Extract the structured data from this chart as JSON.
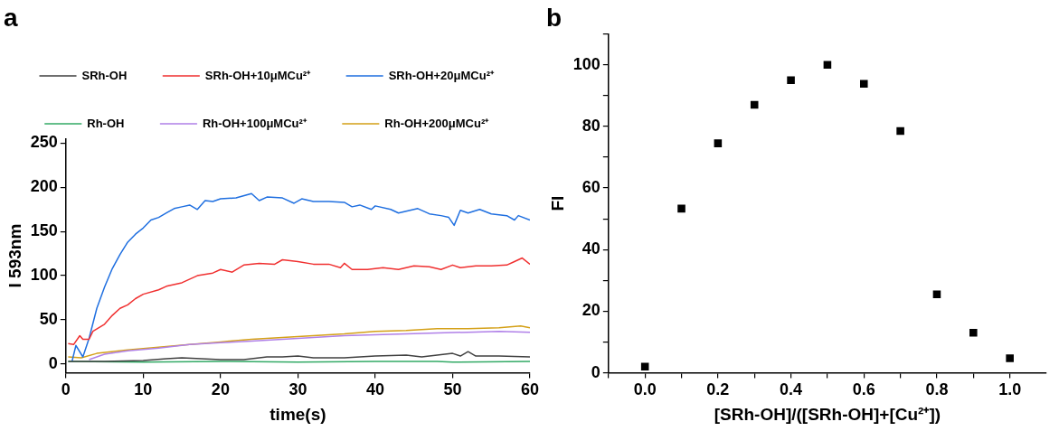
{
  "chart_data": [
    {
      "type": "line",
      "title": "a",
      "xlabel": "time(s)",
      "ylabel": "I 593nm",
      "xlim": [
        0,
        60
      ],
      "xticks": [
        0,
        10,
        20,
        30,
        40,
        50,
        60
      ],
      "ylim": [
        -10,
        255
      ],
      "yticks": [
        0,
        50,
        100,
        150,
        200,
        250
      ],
      "grid": false,
      "legend": "top",
      "marker": "none",
      "line_style": "solid",
      "series": [
        {
          "name": "SRh-OH",
          "color": "#404040",
          "x": [
            0.3,
            5,
            10,
            13,
            15,
            20,
            23,
            26,
            28,
            30,
            32,
            36,
            40,
            44,
            46,
            50,
            51,
            52,
            53,
            56,
            60
          ],
          "values": [
            3,
            3,
            4,
            6,
            7,
            5,
            5,
            8,
            8,
            9,
            7,
            7,
            9,
            10,
            8,
            12,
            9,
            14,
            9,
            9,
            8
          ]
        },
        {
          "name": "SRh-OH+10μMCu²⁺",
          "color": "#f03030",
          "x": [
            0.3,
            1,
            1.8,
            2.2,
            3,
            3.5,
            5,
            6,
            7,
            8,
            9,
            10,
            12,
            13,
            15,
            17,
            19,
            20,
            21.5,
            23,
            25,
            27,
            28,
            30,
            32,
            34,
            35.5,
            36,
            37,
            39,
            41,
            43,
            45,
            47,
            48.5,
            50,
            51,
            53,
            55,
            57,
            58,
            59,
            60
          ],
          "values": [
            23,
            22,
            32,
            28,
            28,
            37,
            45,
            55,
            63,
            67,
            74,
            79,
            84,
            88,
            92,
            100,
            103,
            107,
            104,
            112,
            114,
            113,
            118,
            116,
            113,
            113,
            109,
            114,
            107,
            107,
            109,
            107,
            111,
            110,
            107,
            112,
            109,
            111,
            111,
            112,
            116,
            120,
            113
          ]
        },
        {
          "name": "SRh-OH+20μMCu²⁺",
          "color": "#1f6fe0",
          "x": [
            0.8,
            1.3,
            2.2,
            3,
            4,
            5,
            6,
            7,
            8,
            9,
            10,
            11,
            12,
            13,
            14,
            15,
            16,
            17,
            18,
            19,
            20,
            22,
            24,
            25,
            26,
            28,
            29.5,
            30.5,
            32,
            34,
            36,
            37,
            38,
            39.5,
            40,
            42,
            43,
            45.5,
            47,
            48.5,
            49.5,
            50.2,
            51,
            52,
            53.5,
            55,
            57,
            58,
            58.5,
            60
          ],
          "values": [
            3,
            21,
            8,
            29,
            63,
            87,
            108,
            124,
            138,
            147,
            154,
            163,
            166,
            171,
            176,
            178,
            180,
            175,
            185,
            184,
            187,
            188,
            193,
            185,
            189,
            188,
            182,
            187,
            184,
            184,
            183,
            178,
            180,
            175,
            179,
            175,
            171,
            176,
            170,
            168,
            166,
            157,
            174,
            171,
            175,
            170,
            168,
            163,
            168,
            163
          ]
        },
        {
          "name": "Rh-OH",
          "color": "#33aa66",
          "x": [
            0.3,
            10,
            20,
            30,
            40,
            48,
            50,
            60
          ],
          "values": [
            3,
            2,
            3,
            2,
            3,
            3,
            2,
            3
          ]
        },
        {
          "name": "Rh-OH+100μMCu²⁺",
          "color": "#b080e8",
          "x": [
            3,
            5,
            8,
            12,
            16,
            20,
            24,
            28,
            32,
            36,
            40,
            44,
            48,
            52,
            56,
            60
          ],
          "values": [
            5,
            11,
            15,
            18,
            22,
            24,
            26,
            28,
            30,
            32,
            33,
            34,
            35,
            36,
            37,
            36
          ]
        },
        {
          "name": "Rh-OH+200μMCu²⁺",
          "color": "#d4a017",
          "x": [
            0.3,
            2,
            4,
            8,
            12,
            16,
            20,
            24,
            28,
            32,
            36,
            40,
            44,
            48,
            52,
            56,
            58.8,
            60
          ],
          "values": [
            8,
            7,
            12,
            16,
            19,
            22,
            25,
            28,
            30,
            32,
            34,
            37,
            38,
            40,
            40,
            41,
            43,
            41
          ]
        }
      ]
    },
    {
      "type": "scatter",
      "title": "b",
      "xlabel": "[SRh-OH]/([SRh-OH]+[Cu²⁺])",
      "ylabel": "FI",
      "xlim": [
        -0.1,
        1.1
      ],
      "xticks": [
        {
          "value": -0.1,
          "label": null
        },
        {
          "value": 0,
          "label": "0.0"
        },
        {
          "value": 0.1,
          "label": null
        },
        0.2,
        {
          "value": 0.3,
          "label": null
        },
        0.4,
        {
          "value": 0.5,
          "label": null
        },
        0.6,
        {
          "value": 0.7,
          "label": null
        },
        0.8,
        {
          "value": 0.9,
          "label": null
        },
        {
          "value": 1,
          "label": "1.0"
        }
      ],
      "ylim": [
        0,
        110
      ],
      "yticks": [
        0,
        {
          "value": 10,
          "label": null
        },
        20,
        {
          "value": 30,
          "label": null
        },
        40,
        {
          "value": 50,
          "label": null
        },
        60,
        {
          "value": 70,
          "label": null
        },
        80,
        {
          "value": 90,
          "label": null
        },
        100,
        {
          "value": 110,
          "label": null
        }
      ],
      "grid": false,
      "marker": "square",
      "color": "#000000",
      "x": [
        0,
        0.1,
        0.2,
        0.3,
        0.4,
        0.5,
        0.6,
        0.7,
        0.8,
        0.9,
        1
      ],
      "values": [
        2,
        53.3,
        74.5,
        87,
        95,
        100,
        93.8,
        78.5,
        25.5,
        13,
        4.7
      ]
    }
  ]
}
